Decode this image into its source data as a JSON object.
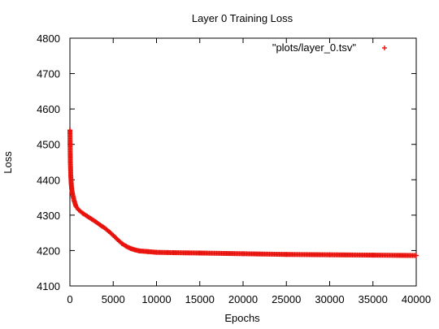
{
  "chart_data": {
    "type": "scatter",
    "title": "Layer 0 Training Loss",
    "xlabel": "Epochs",
    "ylabel": "Loss",
    "xlim": [
      0,
      40000
    ],
    "ylim": [
      4100,
      4800
    ],
    "x_ticks": [
      "0",
      "5000",
      "10000",
      "15000",
      "20000",
      "25000",
      "30000",
      "35000",
      "40000"
    ],
    "y_ticks": [
      "4100",
      "4200",
      "4300",
      "4400",
      "4500",
      "4600",
      "4700",
      "4800"
    ],
    "grid": false,
    "legend_position": "top-right",
    "marker": "+",
    "series": [
      {
        "name": "\"plots/layer_0.tsv\"",
        "color": "#e8120c",
        "x": [
          0,
          20,
          50,
          100,
          150,
          200,
          300,
          400,
          500,
          700,
          1000,
          1500,
          2000,
          2500,
          3000,
          3500,
          4000,
          4500,
          5000,
          5500,
          6000,
          6500,
          7000,
          7500,
          8000,
          9000,
          10000,
          12000,
          15000,
          20000,
          25000,
          30000,
          35000,
          40000
        ],
        "y": [
          4540,
          4500,
          4450,
          4410,
          4390,
          4375,
          4360,
          4350,
          4340,
          4325,
          4315,
          4305,
          4297,
          4289,
          4281,
          4272,
          4264,
          4254,
          4243,
          4231,
          4220,
          4212,
          4206,
          4202,
          4199,
          4197,
          4195,
          4194,
          4193,
          4191,
          4189,
          4188,
          4187,
          4186
        ]
      }
    ]
  }
}
